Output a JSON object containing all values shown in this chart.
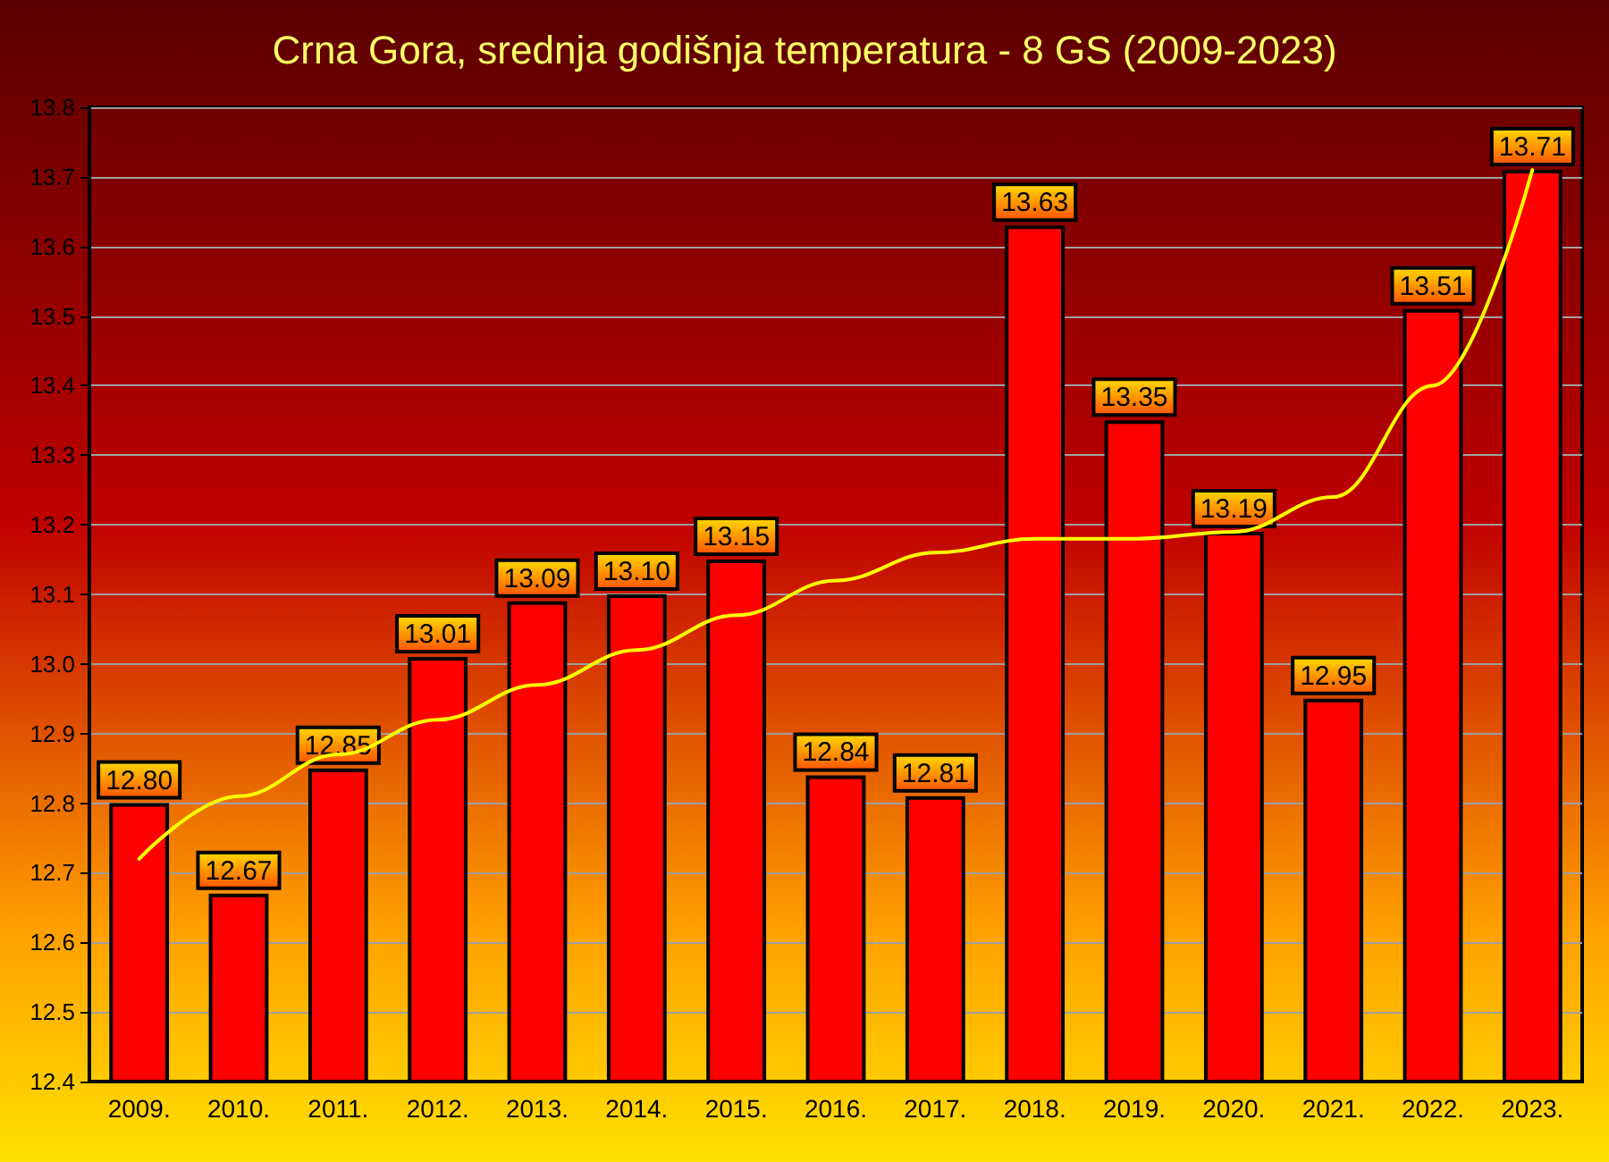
{
  "chart_data": {
    "type": "bar",
    "title": "Crna Gora, srednja godišnja temperatura - 8 GS (2009-2023)",
    "categories": [
      "2009.",
      "2010.",
      "2011.",
      "2012.",
      "2013.",
      "2014.",
      "2015.",
      "2016.",
      "2017.",
      "2018.",
      "2019.",
      "2020.",
      "2021.",
      "2022.",
      "2023."
    ],
    "series": [
      {
        "color": "#ff0000",
        "values": [
          12.8,
          12.67,
          12.85,
          13.01,
          13.09,
          13.1,
          13.15,
          12.84,
          12.81,
          13.63,
          13.35,
          13.19,
          12.95,
          13.51,
          13.71
        ],
        "value_labels": [
          "12.80",
          "12.67",
          "12.85",
          "13.01",
          "13.09",
          "13.10",
          "13.15",
          "12.84",
          "12.81",
          "13.63",
          "13.35",
          "13.19",
          "12.95",
          "13.51",
          "13.71"
        ]
      },
      {
        "type": "line",
        "color": "#ffff00",
        "marker": "none",
        "x": [
          "2009.",
          "2010.",
          "2011.",
          "2012.",
          "2013.",
          "2014.",
          "2015.",
          "2016.",
          "2017.",
          "2018.",
          "2019.",
          "2020.",
          "2021.",
          "2022.",
          "2023."
        ],
        "values": [
          12.72,
          12.81,
          12.87,
          12.92,
          12.97,
          13.02,
          13.07,
          13.12,
          13.16,
          13.18,
          13.18,
          13.19,
          13.24,
          13.4,
          13.71
        ]
      }
    ],
    "ylim": [
      12.4,
      13.8
    ],
    "yticks": [
      12.4,
      12.5,
      12.6,
      12.7,
      12.8,
      12.9,
      {
        "value": 13,
        "label": "13.0"
      },
      13.1,
      13.2,
      13.3,
      13.4,
      13.5,
      13.6,
      13.7,
      13.8
    ],
    "grid": "y"
  }
}
